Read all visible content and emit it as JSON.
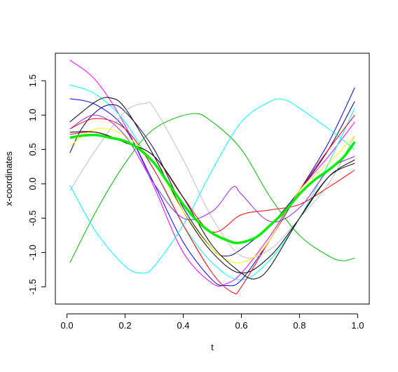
{
  "chart_data": {
    "type": "line",
    "title": "",
    "xlabel": "t",
    "ylabel": "x-coordinates",
    "xlim": [
      -0.04,
      1.04
    ],
    "ylim": [
      -1.75,
      1.9
    ],
    "x_ticks": [
      0.0,
      0.2,
      0.4,
      0.6,
      0.8,
      1.0
    ],
    "x_tick_labels": [
      "0.0",
      "0.2",
      "0.4",
      "0.6",
      "0.8",
      "1.0"
    ],
    "y_ticks": [
      -1.5,
      -1.0,
      -0.5,
      0.0,
      0.5,
      1.0,
      1.5
    ],
    "y_tick_labels": [
      "-1.5",
      "-1.0",
      "-0.5",
      "0.0",
      "0.5",
      "1.0",
      "1.5"
    ],
    "grid": false,
    "legend": "none",
    "series": [
      {
        "color": "#FF00FF",
        "width": 1,
        "points": [
          [
            0.01,
            1.8
          ],
          [
            0.1,
            1.5
          ],
          [
            0.2,
            0.85
          ],
          [
            0.3,
            -0.05
          ],
          [
            0.4,
            -1.0
          ],
          [
            0.5,
            -1.45
          ],
          [
            0.55,
            -1.45
          ],
          [
            0.6,
            -1.3
          ],
          [
            0.7,
            -0.75
          ],
          [
            0.8,
            -0.1
          ],
          [
            0.9,
            0.4
          ],
          [
            0.99,
            0.9
          ]
        ]
      },
      {
        "color": "#00FFFF",
        "width": 1,
        "points": [
          [
            0.01,
            1.44
          ],
          [
            0.1,
            1.3
          ],
          [
            0.2,
            0.9
          ],
          [
            0.3,
            0.2
          ],
          [
            0.4,
            -0.6
          ],
          [
            0.5,
            -1.15
          ],
          [
            0.6,
            -1.4
          ],
          [
            0.7,
            -1.1
          ],
          [
            0.8,
            -0.5
          ],
          [
            0.9,
            0.3
          ],
          [
            0.99,
            1.1
          ]
        ]
      },
      {
        "color": "#0000FF",
        "width": 1,
        "points": [
          [
            0.01,
            1.24
          ],
          [
            0.1,
            1.15
          ],
          [
            0.2,
            0.8
          ],
          [
            0.3,
            0.0
          ],
          [
            0.4,
            -0.85
          ],
          [
            0.5,
            -1.4
          ],
          [
            0.55,
            -1.48
          ],
          [
            0.6,
            -1.4
          ],
          [
            0.7,
            -0.8
          ],
          [
            0.8,
            -0.1
          ],
          [
            0.9,
            0.6
          ],
          [
            0.99,
            1.4
          ]
        ]
      },
      {
        "color": "#000000",
        "width": 1,
        "points": [
          [
            0.01,
            0.9
          ],
          [
            0.1,
            1.2
          ],
          [
            0.15,
            1.25
          ],
          [
            0.2,
            1.1
          ],
          [
            0.3,
            0.4
          ],
          [
            0.4,
            -0.4
          ],
          [
            0.5,
            -1.0
          ],
          [
            0.6,
            -1.3
          ],
          [
            0.7,
            -1.05
          ],
          [
            0.8,
            -0.5
          ],
          [
            0.9,
            0.1
          ],
          [
            0.99,
            0.35
          ]
        ]
      },
      {
        "color": "#000080",
        "width": 1,
        "points": [
          [
            0.01,
            0.45
          ],
          [
            0.05,
            0.8
          ],
          [
            0.1,
            1.05
          ],
          [
            0.15,
            1.15
          ],
          [
            0.2,
            1.05
          ],
          [
            0.3,
            0.5
          ],
          [
            0.4,
            -0.35
          ],
          [
            0.5,
            -0.95
          ],
          [
            0.55,
            -1.05
          ],
          [
            0.6,
            -0.95
          ],
          [
            0.7,
            -0.6
          ],
          [
            0.8,
            -0.1
          ],
          [
            0.9,
            0.5
          ],
          [
            0.99,
            1.2
          ]
        ]
      },
      {
        "color": "#BEBEBE",
        "width": 1,
        "points": [
          [
            0.01,
            -0.1
          ],
          [
            0.1,
            0.5
          ],
          [
            0.2,
            1.05
          ],
          [
            0.27,
            1.17
          ],
          [
            0.3,
            1.1
          ],
          [
            0.4,
            0.35
          ],
          [
            0.5,
            -0.5
          ],
          [
            0.6,
            -1.05
          ],
          [
            0.7,
            -0.95
          ],
          [
            0.8,
            -0.5
          ],
          [
            0.9,
            0.0
          ],
          [
            0.99,
            0.7
          ]
        ]
      },
      {
        "color": "#00BB00",
        "width": 1,
        "points": [
          [
            0.01,
            -1.15
          ],
          [
            0.1,
            -0.4
          ],
          [
            0.2,
            0.3
          ],
          [
            0.3,
            0.8
          ],
          [
            0.43,
            1.02
          ],
          [
            0.5,
            0.9
          ],
          [
            0.6,
            0.5
          ],
          [
            0.7,
            -0.2
          ],
          [
            0.8,
            -0.75
          ],
          [
            0.9,
            -1.05
          ],
          [
            0.95,
            -1.12
          ],
          [
            0.99,
            -1.08
          ]
        ]
      },
      {
        "color": "#00FFFF",
        "width": 1,
        "points": [
          [
            0.01,
            -0.02
          ],
          [
            0.1,
            -0.7
          ],
          [
            0.2,
            -1.2
          ],
          [
            0.26,
            -1.3
          ],
          [
            0.3,
            -1.2
          ],
          [
            0.4,
            -0.6
          ],
          [
            0.5,
            0.2
          ],
          [
            0.6,
            0.9
          ],
          [
            0.7,
            1.2
          ],
          [
            0.75,
            1.22
          ],
          [
            0.8,
            1.1
          ],
          [
            0.9,
            0.8
          ],
          [
            0.99,
            0.5
          ]
        ]
      },
      {
        "color": "#FF0000",
        "width": 1,
        "points": [
          [
            0.01,
            0.8
          ],
          [
            0.1,
            0.95
          ],
          [
            0.2,
            0.8
          ],
          [
            0.3,
            0.2
          ],
          [
            0.4,
            -0.6
          ],
          [
            0.5,
            -1.3
          ],
          [
            0.57,
            -1.58
          ],
          [
            0.6,
            -1.5
          ],
          [
            0.7,
            -0.8
          ],
          [
            0.8,
            -0.1
          ],
          [
            0.9,
            0.5
          ],
          [
            0.99,
            1.0
          ]
        ]
      },
      {
        "color": "#FF0000",
        "width": 1,
        "points": [
          [
            0.01,
            0.72
          ],
          [
            0.1,
            0.75
          ],
          [
            0.2,
            0.6
          ],
          [
            0.3,
            0.4
          ],
          [
            0.4,
            -0.2
          ],
          [
            0.5,
            -0.7
          ],
          [
            0.6,
            -0.45
          ],
          [
            0.7,
            -0.38
          ],
          [
            0.8,
            -0.3
          ],
          [
            0.9,
            -0.05
          ],
          [
            0.99,
            0.2
          ]
        ]
      },
      {
        "color": "#FFFF00",
        "width": 1,
        "points": [
          [
            0.01,
            0.55
          ],
          [
            0.1,
            0.8
          ],
          [
            0.2,
            0.7
          ],
          [
            0.3,
            0.3
          ],
          [
            0.4,
            -0.4
          ],
          [
            0.5,
            -0.95
          ],
          [
            0.58,
            -1.15
          ],
          [
            0.65,
            -1.05
          ],
          [
            0.7,
            -0.8
          ],
          [
            0.8,
            -0.1
          ],
          [
            0.9,
            0.3
          ],
          [
            0.99,
            0.7
          ]
        ]
      },
      {
        "color": "#A020F0",
        "width": 1,
        "points": [
          [
            0.01,
            0.8
          ],
          [
            0.1,
            1.0
          ],
          [
            0.2,
            0.7
          ],
          [
            0.3,
            0.0
          ],
          [
            0.4,
            -0.5
          ],
          [
            0.5,
            -0.4
          ],
          [
            0.57,
            -0.05
          ],
          [
            0.6,
            -0.15
          ],
          [
            0.7,
            -0.55
          ],
          [
            0.8,
            -0.35
          ],
          [
            0.9,
            0.2
          ],
          [
            0.99,
            0.4
          ]
        ]
      },
      {
        "color": "#000000",
        "width": 1,
        "points": [
          [
            0.01,
            0.75
          ],
          [
            0.1,
            0.75
          ],
          [
            0.2,
            0.6
          ],
          [
            0.3,
            0.4
          ],
          [
            0.4,
            -0.2
          ],
          [
            0.5,
            -0.9
          ],
          [
            0.6,
            -1.3
          ],
          [
            0.65,
            -1.38
          ],
          [
            0.7,
            -1.2
          ],
          [
            0.8,
            -0.5
          ],
          [
            0.9,
            0.1
          ],
          [
            0.99,
            0.3
          ]
        ]
      },
      {
        "color": "#00EE00",
        "width": 3.5,
        "points": [
          [
            0.01,
            0.67
          ],
          [
            0.05,
            0.7
          ],
          [
            0.1,
            0.71
          ],
          [
            0.15,
            0.67
          ],
          [
            0.2,
            0.62
          ],
          [
            0.25,
            0.5
          ],
          [
            0.3,
            0.3
          ],
          [
            0.35,
            0.0
          ],
          [
            0.4,
            -0.3
          ],
          [
            0.45,
            -0.55
          ],
          [
            0.5,
            -0.72
          ],
          [
            0.55,
            -0.82
          ],
          [
            0.59,
            -0.86
          ],
          [
            0.65,
            -0.78
          ],
          [
            0.7,
            -0.6
          ],
          [
            0.75,
            -0.4
          ],
          [
            0.8,
            -0.15
          ],
          [
            0.85,
            0.05
          ],
          [
            0.9,
            0.2
          ],
          [
            0.95,
            0.38
          ],
          [
            0.99,
            0.61
          ]
        ]
      }
    ]
  }
}
